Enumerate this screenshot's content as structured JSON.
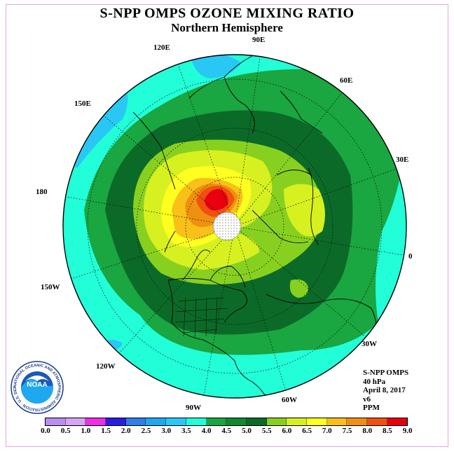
{
  "header": {
    "title": "S-NPP OMPS OZONE MIXING RATIO",
    "subtitle": "Northern Hemisphere"
  },
  "map": {
    "projection": "north-polar-stereographic",
    "longitude_labels": [
      "90E",
      "60E",
      "30E",
      "0",
      "30W",
      "60W",
      "90W",
      "120W",
      "150W",
      "180",
      "150E",
      "120E"
    ]
  },
  "info": {
    "instrument": "S-NPP OMPS",
    "level": "40 hPa",
    "date": "April 8, 2017",
    "version": "v6",
    "units": "PPM"
  },
  "colorbar": {
    "ticks": [
      "0.0",
      "0.5",
      "1.0",
      "1.5",
      "2.0",
      "2.5",
      "3.0",
      "3.5",
      "4.0",
      "4.5",
      "5.0",
      "5.5",
      "6.0",
      "6.5",
      "7.0",
      "7.5",
      "8.0",
      "8.5",
      "9.0"
    ],
    "colors": [
      "#b98ef0",
      "#d6a6f2",
      "#ee2de6",
      "#2a1ee0",
      "#2f7fe6",
      "#1ea8f0",
      "#29c8f4",
      "#22ffd8",
      "#1aa640",
      "#128830",
      "#0c6a28",
      "#88d020",
      "#d6f020",
      "#ffff20",
      "#f8c018",
      "#f09010",
      "#f05010",
      "#e80010",
      "#885030"
    ]
  },
  "logo": {
    "text": "NOAA",
    "ring_text": "NATIONAL OCEANIC AND ATMOSPHERIC ADMINISTRATION · U.S. DEPARTMENT OF COMMERCE"
  }
}
